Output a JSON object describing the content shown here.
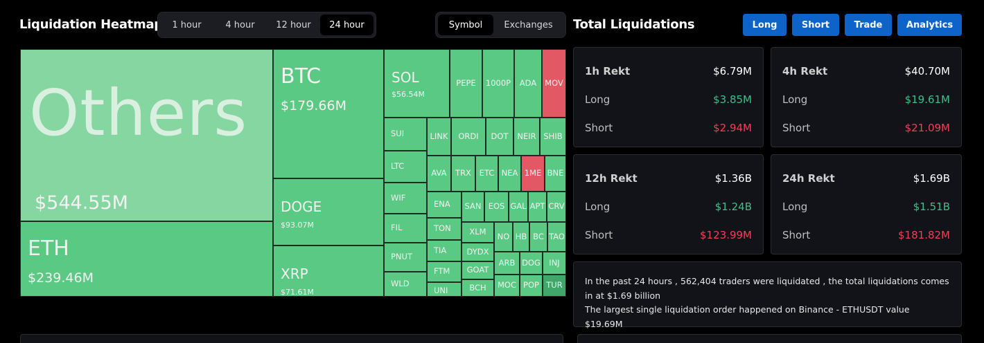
{
  "heatmap": {
    "title": "Liquidation Heatmap",
    "time_options": [
      "1 hour",
      "4 hour",
      "12 hour",
      "24 hour"
    ],
    "time_selected": "24 hour",
    "view_options": [
      "Symbol",
      "Exchanges"
    ],
    "view_selected": "Symbol"
  },
  "totals": {
    "title": "Total Liquidations",
    "buttons": [
      "Long",
      "Short",
      "Trade",
      "Analytics"
    ]
  },
  "tiles": [
    {
      "symbol": "Others",
      "value": "$544.55M",
      "tone": "light"
    },
    {
      "symbol": "ETH",
      "value": "$239.46M",
      "tone": "green"
    },
    {
      "symbol": "BTC",
      "value": "$179.66M",
      "tone": "green"
    },
    {
      "symbol": "DOGE",
      "value": "$93.07M",
      "tone": "green"
    },
    {
      "symbol": "XRP",
      "value": "$71.61M",
      "tone": "green"
    },
    {
      "symbol": "SOL",
      "value": "$56.54M",
      "tone": "green"
    },
    {
      "symbol": "PEPE",
      "tone": "green"
    },
    {
      "symbol": "1000P",
      "tone": "green"
    },
    {
      "symbol": "ADA",
      "tone": "green"
    },
    {
      "symbol": "MOV",
      "tone": "red"
    },
    {
      "symbol": "SUI",
      "tone": "green"
    },
    {
      "symbol": "LTC",
      "tone": "green"
    },
    {
      "symbol": "WIF",
      "tone": "green"
    },
    {
      "symbol": "FIL",
      "tone": "green"
    },
    {
      "symbol": "PNUT",
      "tone": "green"
    },
    {
      "symbol": "WLD",
      "tone": "green"
    },
    {
      "symbol": "LINK",
      "tone": "green"
    },
    {
      "symbol": "ORDI",
      "tone": "green"
    },
    {
      "symbol": "DOT",
      "tone": "green"
    },
    {
      "symbol": "NEIR",
      "tone": "green"
    },
    {
      "symbol": "SHIB",
      "tone": "green"
    },
    {
      "symbol": "AVA",
      "tone": "green"
    },
    {
      "symbol": "TRX",
      "tone": "green"
    },
    {
      "symbol": "ETC",
      "tone": "green"
    },
    {
      "symbol": "NEA",
      "tone": "green"
    },
    {
      "symbol": "1ME",
      "tone": "red"
    },
    {
      "symbol": "BNE",
      "tone": "green"
    },
    {
      "symbol": "ENA",
      "tone": "green"
    },
    {
      "symbol": "SAN",
      "tone": "green"
    },
    {
      "symbol": "EOS",
      "tone": "green"
    },
    {
      "symbol": "GAL",
      "tone": "green"
    },
    {
      "symbol": "APT",
      "tone": "green"
    },
    {
      "symbol": "CRV",
      "tone": "green"
    },
    {
      "symbol": "TON",
      "tone": "green"
    },
    {
      "symbol": "XLM",
      "tone": "green"
    },
    {
      "symbol": "NO",
      "tone": "green"
    },
    {
      "symbol": "HB",
      "tone": "green"
    },
    {
      "symbol": "BC",
      "tone": "green"
    },
    {
      "symbol": "TAO",
      "tone": "green"
    },
    {
      "symbol": "TIA",
      "tone": "green"
    },
    {
      "symbol": "DYDX",
      "tone": "green"
    },
    {
      "symbol": "FTM",
      "tone": "green"
    },
    {
      "symbol": "GOAT",
      "tone": "green"
    },
    {
      "symbol": "ARB",
      "tone": "green"
    },
    {
      "symbol": "DOG",
      "tone": "green"
    },
    {
      "symbol": "INJ",
      "tone": "green"
    },
    {
      "symbol": "UNI",
      "tone": "green"
    },
    {
      "symbol": "BCH",
      "tone": "green"
    },
    {
      "symbol": "MOC",
      "tone": "green"
    },
    {
      "symbol": "POP",
      "tone": "green"
    },
    {
      "symbol": "TUR",
      "tone": "dark"
    }
  ],
  "cards": [
    {
      "label": "1h Rekt",
      "total": "$6.79M",
      "long_label": "Long",
      "long": "$3.85M",
      "short_label": "Short",
      "short": "$2.94M"
    },
    {
      "label": "4h Rekt",
      "total": "$40.70M",
      "long_label": "Long",
      "long": "$19.61M",
      "short_label": "Short",
      "short": "$21.09M"
    },
    {
      "label": "12h Rekt",
      "total": "$1.36B",
      "long_label": "Long",
      "long": "$1.24B",
      "short_label": "Short",
      "short": "$123.99M"
    },
    {
      "label": "24h Rekt",
      "total": "$1.69B",
      "long_label": "Long",
      "long": "$1.51B",
      "short_label": "Short",
      "short": "$181.82M"
    }
  ],
  "summary": {
    "line1": "In the past 24 hours , 562,404 traders were liquidated , the total liquidations comes in at $1.69 billion",
    "line2": "The largest single liquidation order happened on Binance - ETHUSDT value $19.69M"
  },
  "colors": {
    "green": "#5ac983",
    "light_green": "#86d6a1",
    "red": "#e25864",
    "accent": "#0d63c7",
    "long_green": "#3fbf8a",
    "short_red": "#ef4157"
  }
}
